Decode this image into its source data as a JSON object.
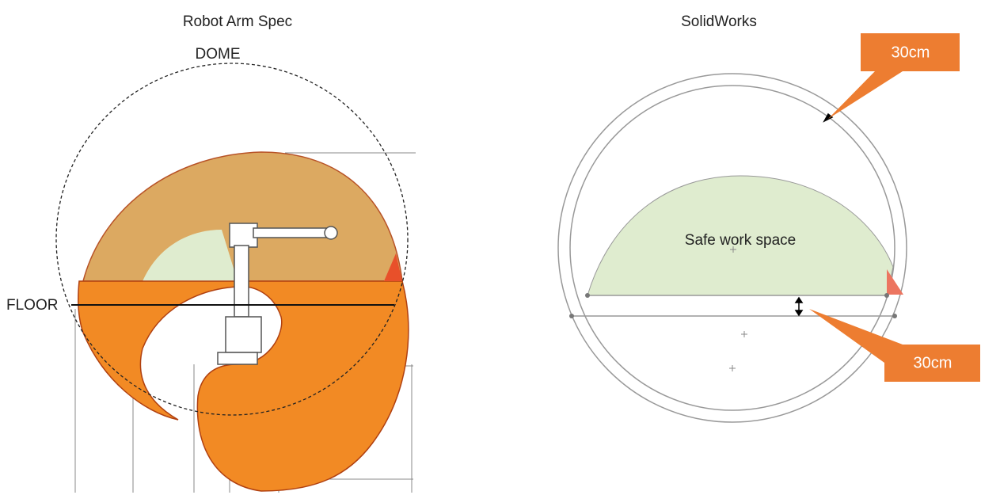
{
  "left": {
    "title": "Robot Arm Spec",
    "dome_label": "DOME",
    "floor_label": "FLOOR"
  },
  "right": {
    "title": "SolidWorks",
    "safe_label": "Safe work space",
    "callout_top": "30cm",
    "callout_bottom": "30cm"
  }
}
